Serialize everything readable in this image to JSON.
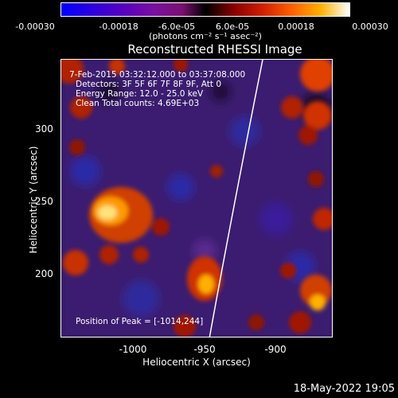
{
  "colorbar": {
    "ticks": [
      "-0.00030",
      "-0.00018",
      "-6.0e-05",
      "6.0e-05",
      "0.00018",
      "0.00030"
    ],
    "unit_label": "(photons cm⁻² s⁻¹ asec⁻²)",
    "colors": [
      "#0000ff",
      "#5a00c0",
      "#000000",
      "#d02000",
      "#ffb000",
      "#ffffff"
    ]
  },
  "title": "Reconstructed RHESSI Image",
  "annotations": {
    "time_range": "7-Feb-2015 03:32:12.000 to 03:37:08.000",
    "detectors": "Detectors: 3F 5F 6F 7F 8F 9F, Att 0",
    "energy": "Energy Range: 12.0 - 25.0 keV",
    "method": "Clean     Total counts: 4.69E+03",
    "peak": "Position of Peak = [-1014,244]"
  },
  "axes": {
    "xlabel": "Heliocentric X (arcsec)",
    "ylabel": "Heliocentric Y (arcsec)",
    "xticks": [
      "-1000",
      "-950",
      "-900"
    ],
    "yticks": [
      "300",
      "250",
      "200"
    ],
    "xrange": [
      -1047,
      -885
    ],
    "yrange": [
      155,
      345
    ]
  },
  "footer": {
    "date": "18-May-2022 19:05"
  }
}
